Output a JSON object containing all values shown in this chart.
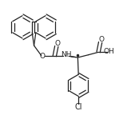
{
  "background_color": "#ffffff",
  "line_color": "#222222",
  "line_width": 0.9,
  "figsize": [
    1.69,
    1.44
  ],
  "dpi": 100,
  "xlim": [
    0,
    10
  ],
  "ylim": [
    0,
    8.5
  ]
}
